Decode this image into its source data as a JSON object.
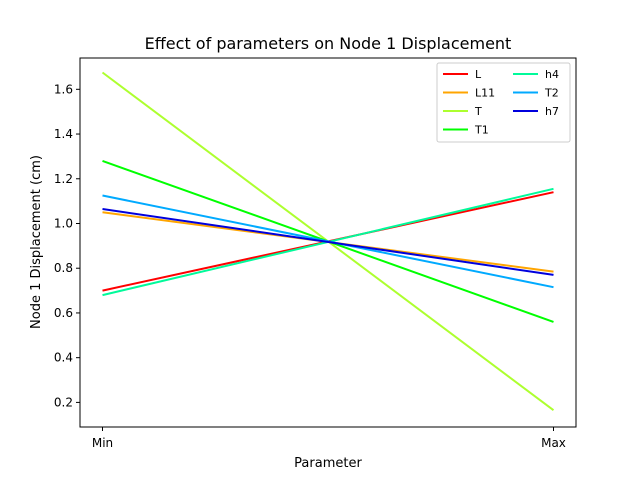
{
  "chart_data": {
    "type": "line",
    "title": "Effect of parameters on Node 1 Displacement",
    "xlabel": "Parameter",
    "ylabel": "Node 1 Displacement (cm)",
    "categories": [
      "Min",
      "Max"
    ],
    "ylim": [
      0.09,
      1.74
    ],
    "yticks": [
      "0.2",
      "0.4",
      "0.6",
      "0.8",
      "1.0",
      "1.2",
      "1.4",
      "1.6"
    ],
    "grid": false,
    "legend_position": "top-right",
    "series": [
      {
        "name": "L",
        "color": "#ff0000",
        "values": [
          0.7,
          1.14
        ]
      },
      {
        "name": "L11",
        "color": "#ffa500",
        "values": [
          1.05,
          0.785
        ]
      },
      {
        "name": "T",
        "color": "#adff2f",
        "values": [
          1.675,
          0.165
        ]
      },
      {
        "name": "T1",
        "color": "#00ff00",
        "values": [
          1.28,
          0.56
        ]
      },
      {
        "name": "h4",
        "color": "#00fa9a",
        "values": [
          0.68,
          1.155
        ]
      },
      {
        "name": "T2",
        "color": "#00aaff",
        "values": [
          1.125,
          0.715
        ]
      },
      {
        "name": "h7",
        "color": "#0000dd",
        "values": [
          1.065,
          0.77
        ]
      }
    ]
  }
}
